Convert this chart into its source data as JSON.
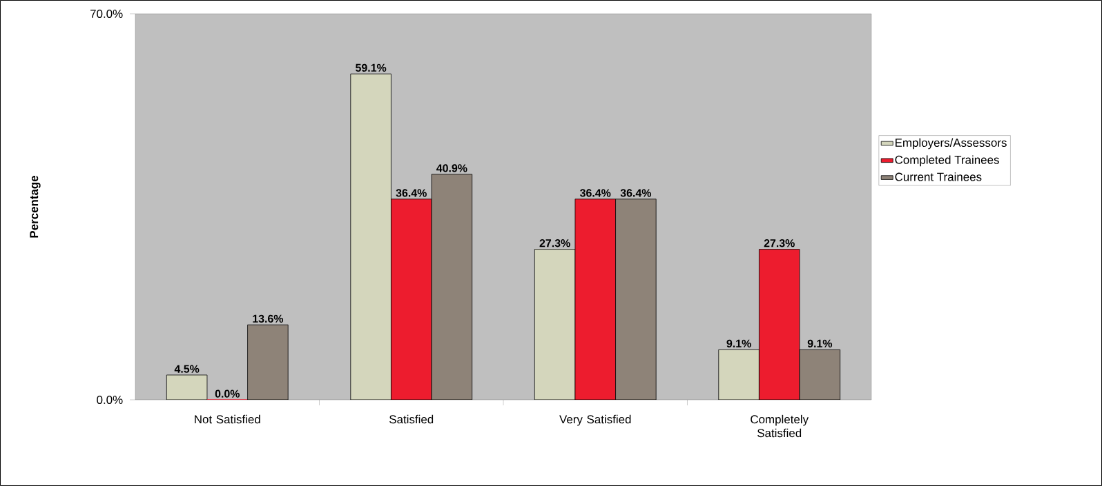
{
  "chart_data": {
    "type": "bar",
    "ylabel": "**Percentage**",
    "categories": [
      "Not Satisfied",
      "Satisfied",
      "Very Satisfied",
      "Completely Satisfied"
    ],
    "series": [
      {
        "name": "Employers/Assessors",
        "color": "#d4d6bc",
        "values": [
          4.5,
          59.1,
          27.3,
          9.1
        ],
        "value_labels": [
          "4.5%",
          "59.1%",
          "27.3%",
          "9.1%"
        ]
      },
      {
        "name": "Completed Trainees",
        "color": "#ed1c2e",
        "values": [
          0.0,
          36.4,
          36.4,
          27.3
        ],
        "value_labels": [
          "0.0%",
          "36.4%",
          "36.4%",
          "27.3%"
        ]
      },
      {
        "name": "Current Trainees",
        "color": "#8e8378",
        "values": [
          13.6,
          40.9,
          36.4,
          9.1
        ],
        "value_labels": [
          "13.6%",
          "40.9%",
          "36.4%",
          "9.1%"
        ]
      }
    ],
    "ylim": [
      0,
      70
    ],
    "yticks": [
      {
        "value": 0,
        "label": "0.0%"
      },
      {
        "value": 70,
        "label": "70.0%"
      }
    ],
    "legend": "right"
  }
}
